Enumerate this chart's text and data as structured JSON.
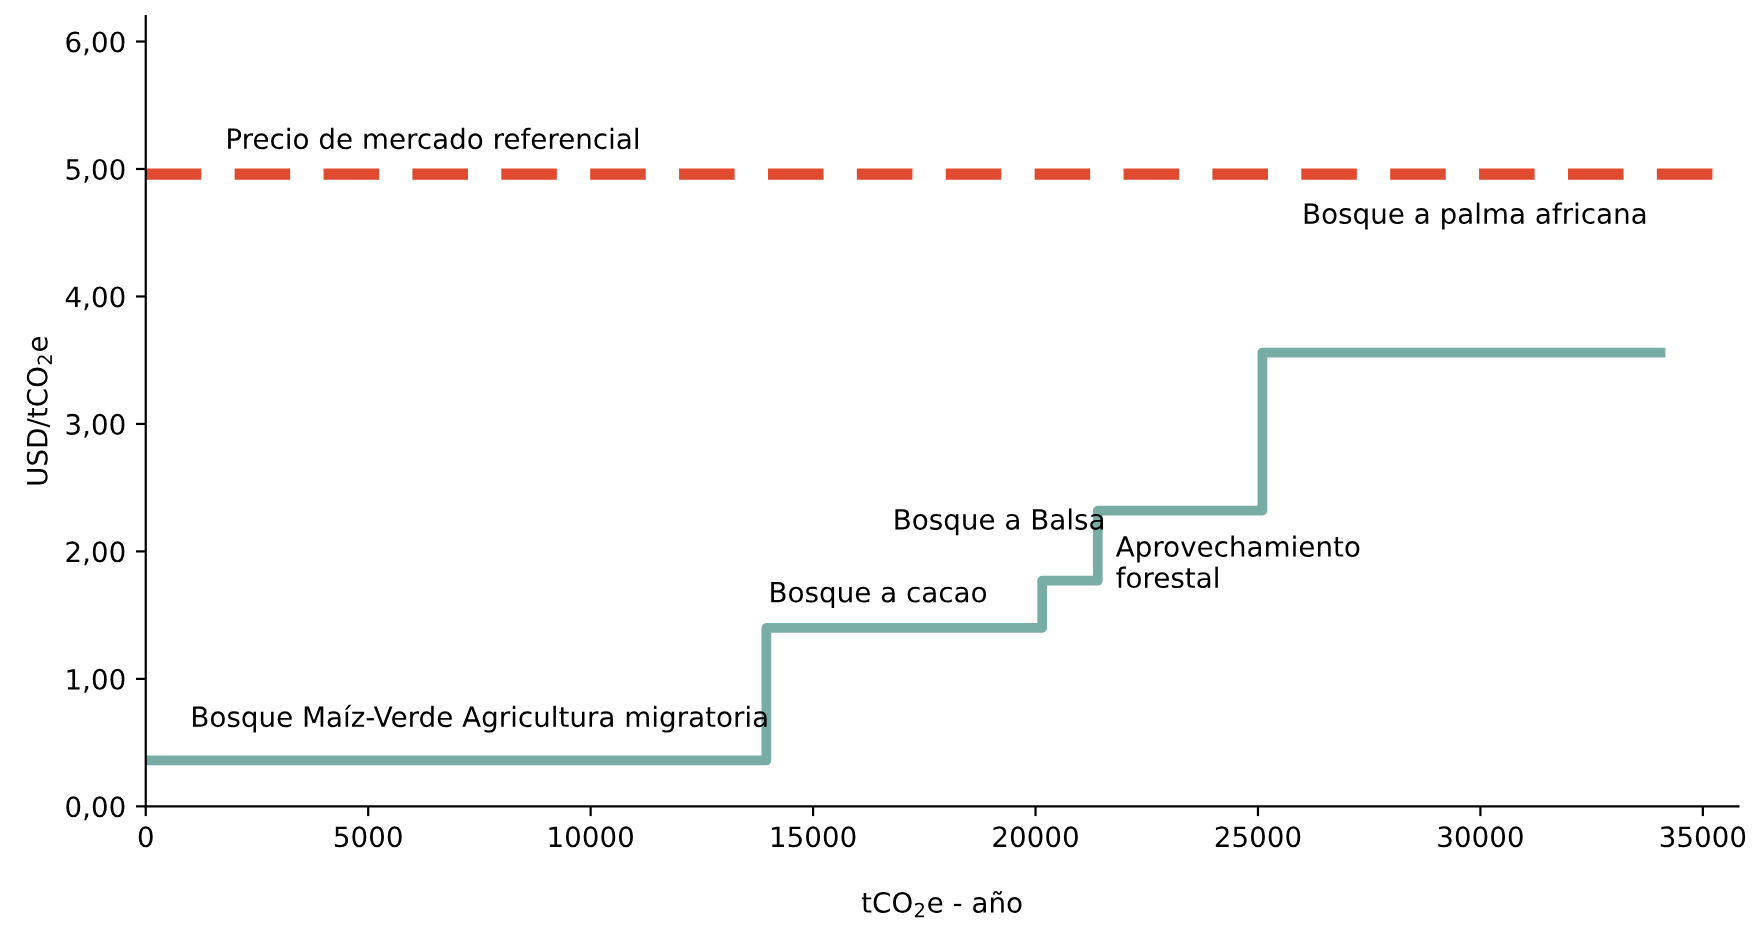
{
  "chart_data": {
    "type": "step",
    "xlabel": "tCO$_{2}$e - año",
    "ylabel": "USD/tCO$_{2}$e",
    "x": [
      0,
      13950,
      20150,
      21400,
      25100,
      34050
    ],
    "series": [
      {
        "color": "#78ada5",
        "values": [
          0.36,
          1.4,
          1.77,
          2.32,
          3.56,
          3.56
        ]
      }
    ],
    "xlim": [
      0,
      35800
    ],
    "ylim": [
      0,
      6.2
    ],
    "xticks": [
      0,
      5000,
      10000,
      15000,
      20000,
      25000,
      30000,
      35000
    ],
    "yticks": [
      {
        "value": 0,
        "label": "0,00"
      },
      {
        "value": 1,
        "label": "1,00"
      },
      {
        "value": 2,
        "label": "2,00"
      },
      {
        "value": 3,
        "label": "3,00"
      },
      {
        "value": 4,
        "label": "4,00"
      },
      {
        "value": 5,
        "label": "5,00"
      },
      {
        "value": 6,
        "label": "6,00"
      }
    ],
    "ref_lines": [
      {
        "axis": "y",
        "value": 4.96,
        "label": "Precio de mercado referencial",
        "color": "#e04a2f",
        "line_style": "dashed"
      }
    ],
    "annotations": [
      "Bosque Maíz-Verde Agricultura migratoria",
      "Bosque a cacao",
      "Bosque a Balsa",
      "Aprovechamiento\nforestal",
      "Bosque a palma africana"
    ],
    "grid": false,
    "legend": false,
    "line_style": "solid",
    "marker": "none"
  }
}
